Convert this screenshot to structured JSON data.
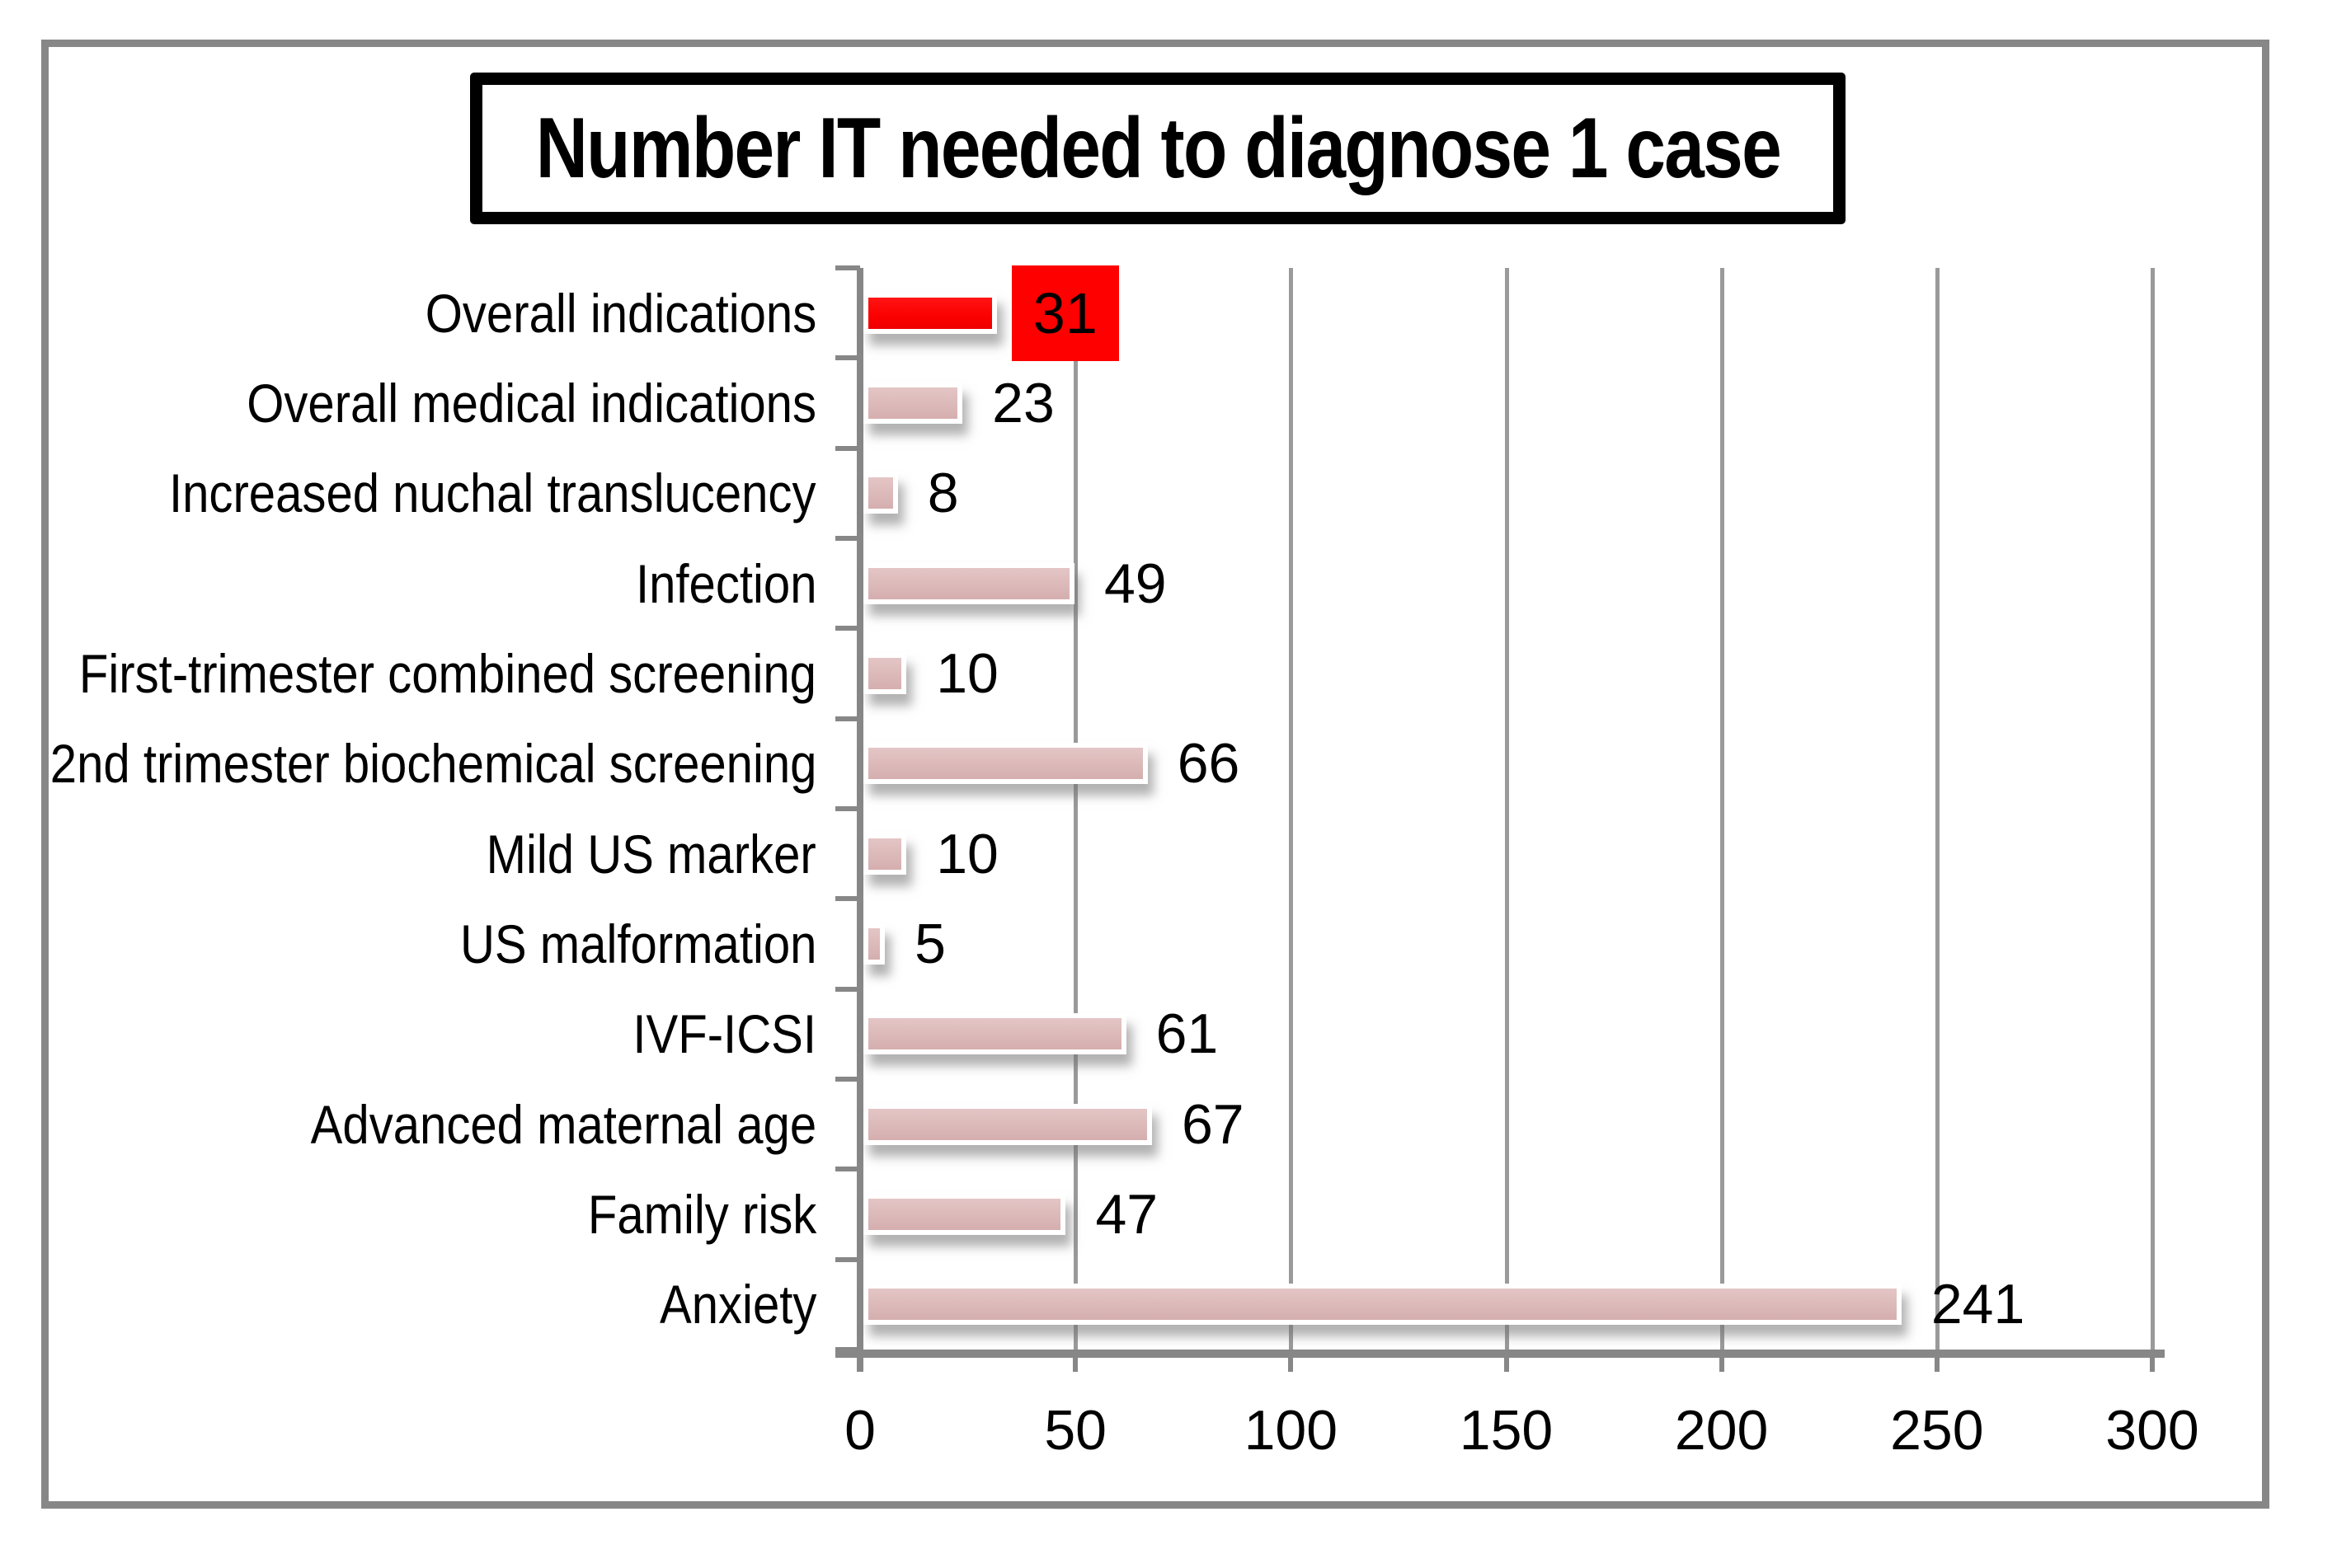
{
  "chart_data": {
    "type": "bar",
    "orientation": "horizontal",
    "title": "Number IT needed to diagnose 1 case",
    "categories": [
      "Overall indications",
      "Overall medical indications",
      "Increased nuchal translucency",
      "Infection",
      "First-trimester combined screening",
      "2nd trimester biochemical screening",
      "Mild US marker",
      "US malformation",
      "IVF-ICSI",
      "Advanced maternal age",
      "Family risk",
      "Anxiety"
    ],
    "values": [
      31,
      23,
      8,
      49,
      10,
      66,
      10,
      5,
      61,
      67,
      47,
      241
    ],
    "highlight_index": 0,
    "xlim": [
      0,
      300
    ],
    "x_ticks": [
      0,
      50,
      100,
      150,
      200,
      250,
      300
    ],
    "grid": "vertical-major",
    "legend": "none",
    "colors": {
      "bar": "#dcb9b9",
      "highlight_bar": "#fe0000",
      "highlight_label_bg": "#fe0000",
      "bar_border": "#ffffff",
      "axis": "#878787",
      "gridline": "#9a9a9a",
      "frame_border": "#878787",
      "title_border": "#000000",
      "text": "#000000"
    }
  }
}
